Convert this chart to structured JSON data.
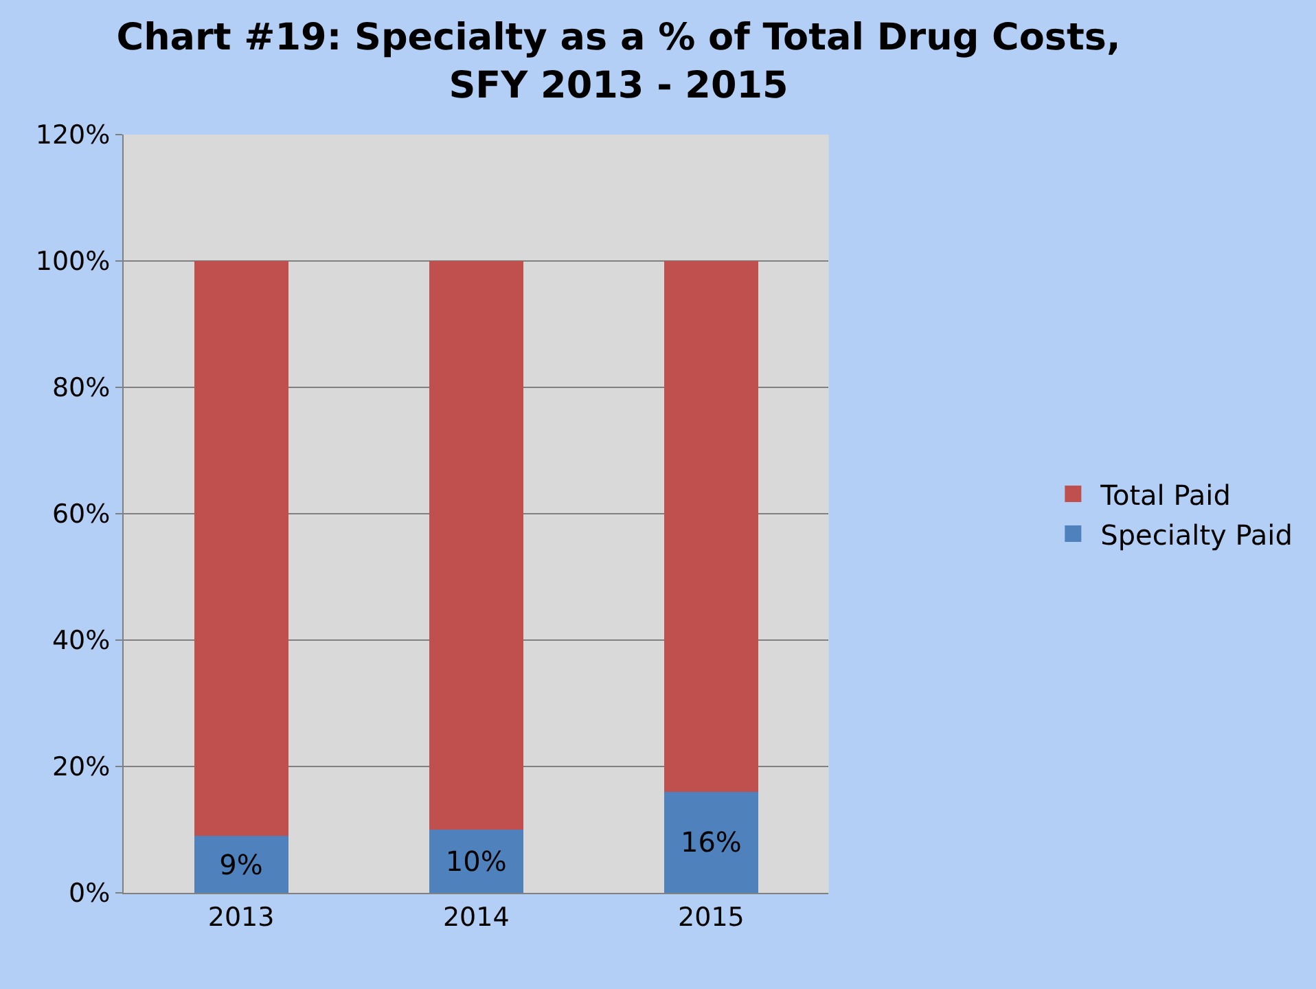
{
  "chart_data": {
    "type": "bar",
    "title": "Chart #19: Specialty as a % of Total Drug Costs,\nSFY 2013 - 2015",
    "categories": [
      "2013",
      "2014",
      "2015"
    ],
    "stacked": true,
    "series": [
      {
        "name": "Specialty Paid",
        "color": "#4f81bd",
        "values": [
          9,
          10,
          16
        ],
        "value_labels": [
          "9%",
          "10%",
          "16%"
        ]
      },
      {
        "name": "Total Paid",
        "color": "#c0504d",
        "values": [
          91,
          90,
          84
        ]
      }
    ],
    "ylim": [
      0,
      120
    ],
    "yticks": [
      {
        "value": 0,
        "label": "0%"
      },
      {
        "value": 20,
        "label": "20%"
      },
      {
        "value": 40,
        "label": "40%"
      },
      {
        "value": 60,
        "label": "60%"
      },
      {
        "value": 80,
        "label": "80%"
      },
      {
        "value": 100,
        "label": "100%"
      },
      {
        "value": 120,
        "label": "120%"
      }
    ],
    "grid": "y",
    "legend": "right"
  }
}
